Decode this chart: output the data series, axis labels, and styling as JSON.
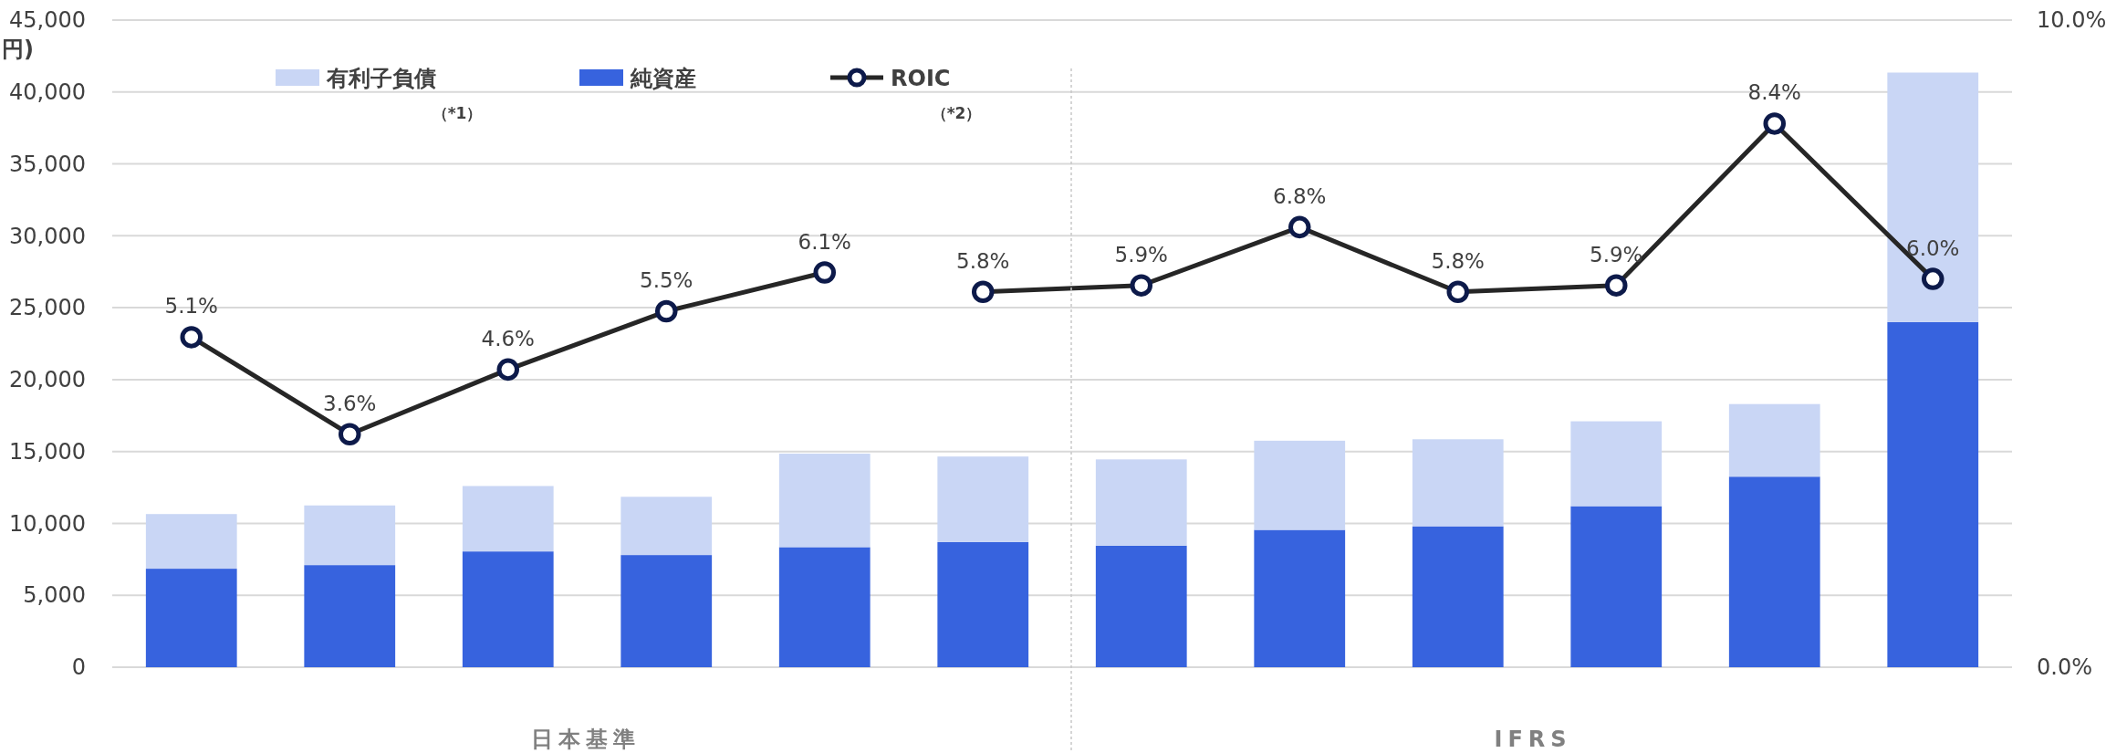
{
  "chart_data": {
    "type": "bar",
    "stacked": true,
    "ylabel": "円)",
    "categories": [
      null,
      null,
      null,
      null,
      null,
      null,
      null,
      null,
      null,
      null,
      null,
      null
    ],
    "series": [
      {
        "name": "純資産",
        "color": "#3763de",
        "values": [
          6850,
          7100,
          8050,
          7800,
          8350,
          8700,
          8450,
          9550,
          9800,
          11200,
          13250,
          24000
        ]
      },
      {
        "name": "有利子負債",
        "color": "#c9d6f5",
        "values": [
          3800,
          4150,
          4550,
          4050,
          6500,
          5950,
          6000,
          6200,
          6050,
          5900,
          5050,
          17350
        ]
      },
      {
        "name": "ROIC",
        "type": "line",
        "axis": "y2",
        "color": "#262626",
        "marker": "circle",
        "values": [
          5.1,
          3.6,
          4.6,
          5.5,
          6.1,
          null,
          null,
          null,
          null,
          null,
          null,
          null
        ],
        "value_labels": [
          "5.1%",
          "3.6%",
          "4.6%",
          "5.5%",
          "6.1%",
          null,
          null,
          null,
          null,
          null,
          null,
          null
        ]
      },
      {
        "type": "line",
        "axis": "y2",
        "color": "#262626",
        "marker": "circle",
        "values": [
          null,
          null,
          null,
          null,
          null,
          5.8,
          5.9,
          6.8,
          5.8,
          5.9,
          8.4,
          6.0
        ],
        "value_labels": [
          null,
          null,
          null,
          null,
          null,
          "5.8%",
          "5.9%",
          "6.8%",
          "5.8%",
          "5.9%",
          "8.4%",
          "6.0%"
        ]
      }
    ],
    "ylim": [
      0,
      45000
    ],
    "yticks": [
      {
        "value": 0,
        "label": "0"
      },
      {
        "value": 5000,
        "label": "5,000"
      },
      {
        "value": 10000,
        "label": "10,000"
      },
      {
        "value": 15000,
        "label": "15,000"
      },
      {
        "value": 20000,
        "label": "20,000"
      },
      {
        "value": 25000,
        "label": "25,000"
      },
      {
        "value": 30000,
        "label": "30,000"
      },
      {
        "value": 35000,
        "label": "35,000"
      },
      {
        "value": 40000,
        "label": "40,000"
      },
      {
        "value": 45000,
        "label": "45,000"
      }
    ],
    "y2lim": [
      0,
      10
    ],
    "y2ticks": [
      {
        "value": 0,
        "label": "0.0%"
      },
      {
        "value": 10,
        "label": "10.0%"
      }
    ],
    "grid": "y",
    "legend": "top",
    "annotations": [
      "（*1）",
      "（*2）",
      "日本基準",
      "IFRS"
    ]
  }
}
